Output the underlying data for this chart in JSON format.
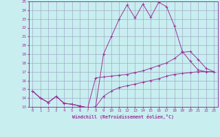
{
  "xlabel": "Windchill (Refroidissement éolien,°C)",
  "xlim": [
    -0.5,
    23.5
  ],
  "ylim": [
    13,
    25
  ],
  "yticks": [
    13,
    14,
    15,
    16,
    17,
    18,
    19,
    20,
    21,
    22,
    23,
    24,
    25
  ],
  "xticks": [
    0,
    1,
    2,
    3,
    4,
    5,
    6,
    7,
    8,
    9,
    10,
    11,
    12,
    13,
    14,
    15,
    16,
    17,
    18,
    19,
    20,
    21,
    22,
    23
  ],
  "bg_color": "#c8eef0",
  "grid_color": "#9999bb",
  "line_color": "#993399",
  "line1_x": [
    0,
    1,
    2,
    3,
    4,
    5,
    6,
    7,
    8,
    9,
    10,
    11,
    12,
    13,
    14,
    15,
    16,
    17,
    18,
    19,
    20,
    21,
    22,
    23
  ],
  "line1_y": [
    14.8,
    14.0,
    13.5,
    14.2,
    13.4,
    13.3,
    13.1,
    12.9,
    13.0,
    19.0,
    21.0,
    23.0,
    24.6,
    23.1,
    24.7,
    23.2,
    24.9,
    24.4,
    22.2,
    19.3,
    18.2,
    17.2,
    17.0,
    17.0
  ],
  "line2_x": [
    0,
    1,
    2,
    3,
    4,
    5,
    6,
    7,
    8,
    9,
    10,
    11,
    12,
    13,
    14,
    15,
    16,
    17,
    18,
    19,
    20,
    21,
    22,
    23
  ],
  "line2_y": [
    14.8,
    14.0,
    13.5,
    14.2,
    13.4,
    13.3,
    13.1,
    12.9,
    16.3,
    16.4,
    16.5,
    16.6,
    16.7,
    16.9,
    17.1,
    17.4,
    17.7,
    18.0,
    18.5,
    19.2,
    19.3,
    18.4,
    17.4,
    17.0
  ],
  "line3_x": [
    0,
    1,
    2,
    3,
    4,
    5,
    6,
    7,
    8,
    9,
    10,
    11,
    12,
    13,
    14,
    15,
    16,
    17,
    18,
    19,
    20,
    21,
    22,
    23
  ],
  "line3_y": [
    14.8,
    14.0,
    13.5,
    14.2,
    13.4,
    13.3,
    13.1,
    12.9,
    13.0,
    14.2,
    14.8,
    15.2,
    15.4,
    15.6,
    15.8,
    16.0,
    16.2,
    16.5,
    16.7,
    16.8,
    16.9,
    17.0,
    17.0,
    17.0
  ]
}
